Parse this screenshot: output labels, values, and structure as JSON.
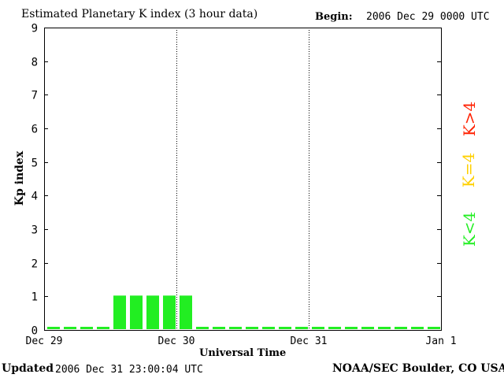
{
  "header": {
    "title": "Estimated Planetary K index (3 hour data)",
    "begin_label": "Begin:",
    "begin_value": "2006 Dec 29 0000 UTC"
  },
  "footer": {
    "updated_label": "Updated",
    "updated_value": "2006 Dec 31 23:00:04 UTC",
    "source": "NOAA/SEC Boulder, CO USA"
  },
  "legend": {
    "high": {
      "label": "K>4",
      "color": "#ff2000"
    },
    "mid": {
      "label": "K=4",
      "color": "#ffd000"
    },
    "low": {
      "label": "K<4",
      "color": "#22ee22"
    }
  },
  "chart_data": {
    "type": "bar",
    "title": "Estimated Planetary K index (3 hour data)",
    "xlabel": "Universal Time",
    "ylabel": "Kp index",
    "ylim": [
      0,
      9
    ],
    "yticks": [
      "0",
      "1",
      "2",
      "3",
      "4",
      "5",
      "6",
      "7",
      "8",
      "9"
    ],
    "xticks": [
      "Dec 29",
      "Dec 30",
      "Dec 31",
      "Jan 1"
    ],
    "interval_hours": 3,
    "day_gridlines": [
      "Dec 30",
      "Dec 31"
    ],
    "grid": "vertical dotted at day boundaries",
    "legend_position": "right",
    "series": [
      {
        "values": [
          0,
          0,
          0,
          0,
          1,
          1,
          1,
          1,
          1,
          0,
          0,
          0,
          0,
          0,
          0,
          0,
          0,
          0,
          0,
          0,
          0,
          0,
          0,
          0
        ],
        "color": "#22ee22"
      }
    ]
  }
}
